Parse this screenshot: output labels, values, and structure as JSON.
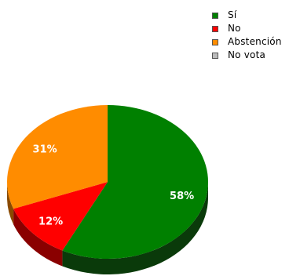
{
  "chart_data": {
    "type": "pie",
    "style": "3d",
    "title": "",
    "legend_position": "top-right",
    "slices": [
      {
        "name": "Sí",
        "value": 58,
        "label": "58%",
        "color": "#008000",
        "side_color": "#0a3a0a"
      },
      {
        "name": "No",
        "value": 12,
        "label": "12%",
        "color": "#ff0000",
        "side_color": "#8a0000"
      },
      {
        "name": "Abstención",
        "value": 31,
        "label": "31%",
        "color": "#ff8c00",
        "side_color": "#8a4a00"
      },
      {
        "name": "No vota",
        "value": 0,
        "label": "",
        "color": "#bbbbbb",
        "side_color": "#777777"
      }
    ]
  }
}
